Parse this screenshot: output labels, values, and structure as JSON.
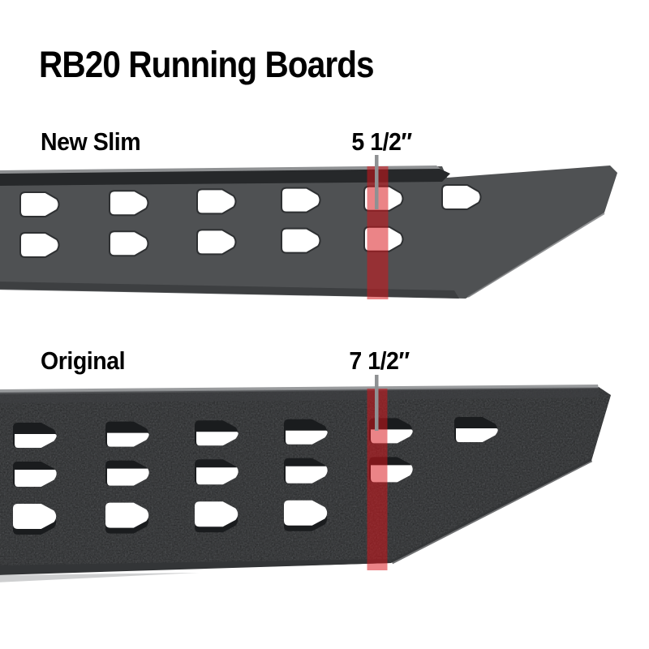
{
  "title": "RB20 Running Boards",
  "boards": [
    {
      "id": "new-slim",
      "name": "New Slim",
      "measurement": "5 1/2″"
    },
    {
      "id": "original",
      "name": "Original",
      "measurement": "7 1/2″"
    }
  ],
  "colors": {
    "background": "#ffffff",
    "text": "#000000",
    "highlight_red": "#d81419",
    "pointer_gray": "#8f9193",
    "slim_body": "#4f5153",
    "slim_top_strip": "#26282a",
    "slim_lip": "#8f9193",
    "slim_edge_dark": "#3a3c3e",
    "slim_diag_highlight": "#77797b",
    "original_body": "#4b4d4f",
    "original_edge_dark": "#333537",
    "original_top_highlight": "#8e9092",
    "original_top_band": "#3d3f41",
    "original_flange": "#c9cacb",
    "hole_white": "#ffffff",
    "hole_dark": "#1a1c1e",
    "hole_stroke": "#2e3032"
  }
}
